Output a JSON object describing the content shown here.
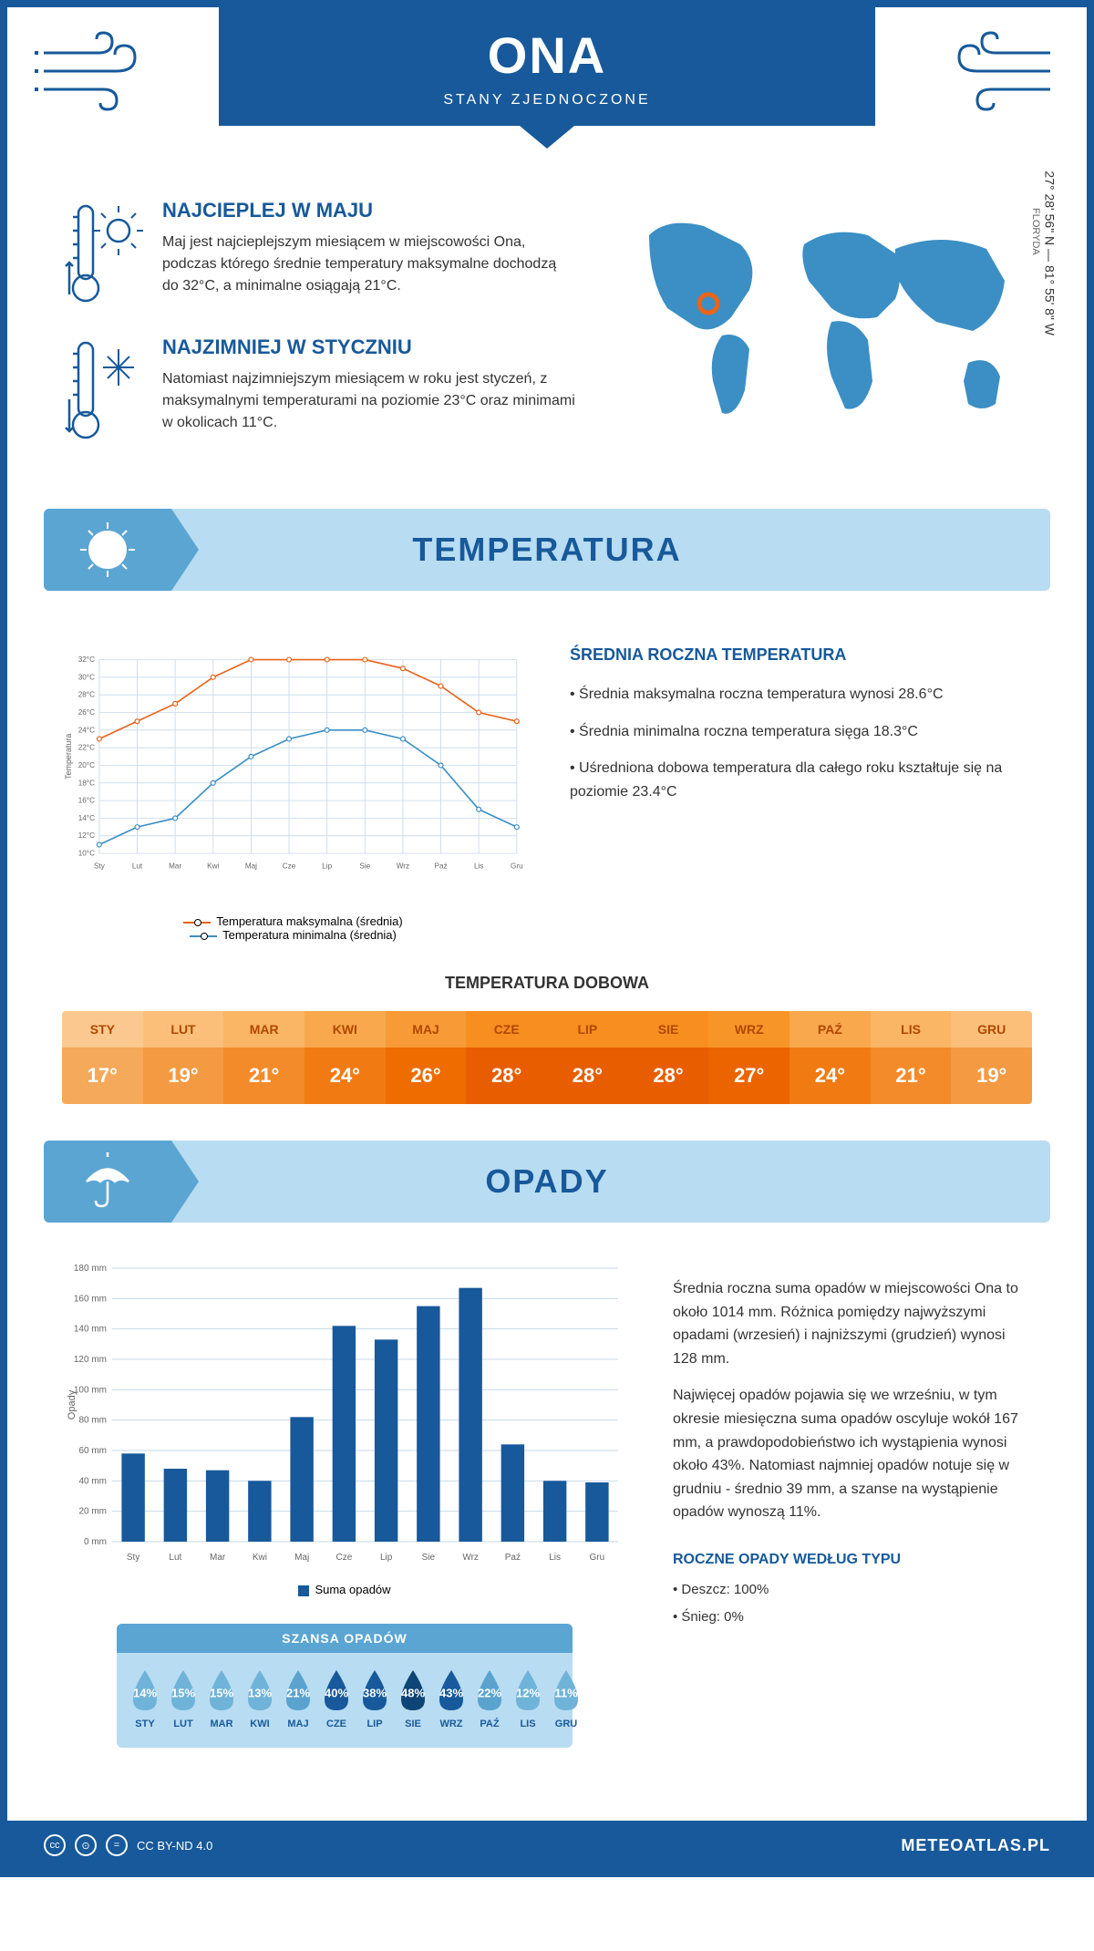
{
  "header": {
    "title": "ONA",
    "subtitle": "STANY ZJEDNOCZONE"
  },
  "intro": {
    "hottest": {
      "title": "NAJCIEPLEJ W MAJU",
      "text": "Maj jest najcieplejszym miesiącem w miejscowości Ona, podczas którego średnie temperatury maksymalne dochodzą do 32°C, a minimalne osiągają 21°C."
    },
    "coldest": {
      "title": "NAJZIMNIEJ W STYCZNIU",
      "text": "Natomiast najzimniejszym miesiącem w roku jest styczeń, z maksymalnymi temperaturami na poziomie 23°C oraz minimami w okolicach 11°C."
    },
    "coords": "27° 28' 56\" N — 81° 55' 8\" W",
    "region": "FLORYDA"
  },
  "temp_section": {
    "title": "TEMPERATURA",
    "chart": {
      "type": "line",
      "months": [
        "Sty",
        "Lut",
        "Mar",
        "Kwi",
        "Maj",
        "Cze",
        "Lip",
        "Sie",
        "Wrz",
        "Paź",
        "Lis",
        "Gru"
      ],
      "max_series": [
        23,
        25,
        27,
        30,
        32,
        32,
        32,
        32,
        31,
        29,
        26,
        25
      ],
      "min_series": [
        11,
        13,
        14,
        18,
        21,
        23,
        24,
        24,
        23,
        20,
        15,
        13
      ],
      "max_color": "#e8641b",
      "min_color": "#3b8fc4",
      "ylim": [
        10,
        32
      ],
      "ytick_step": 2,
      "y_axis_label": "Temperatura",
      "grid_color": "#c8d8e8",
      "background_color": "#ffffff",
      "legend_max": "Temperatura maksymalna (średnia)",
      "legend_min": "Temperatura minimalna (średnia)"
    },
    "side": {
      "title": "ŚREDNIA ROCZNA TEMPERATURA",
      "bullets": [
        "• Średnia maksymalna roczna temperatura wynosi 28.6°C",
        "• Średnia minimalna roczna temperatura sięga 18.3°C",
        "• Uśredniona dobowa temperatura dla całego roku kształtuje się na poziomie 23.4°C"
      ]
    },
    "daily": {
      "title": "TEMPERATURA DOBOWA",
      "months": [
        "STY",
        "LUT",
        "MAR",
        "KWI",
        "MAJ",
        "CZE",
        "LIP",
        "SIE",
        "WRZ",
        "PAŹ",
        "LIS",
        "GRU"
      ],
      "values": [
        "17°",
        "19°",
        "21°",
        "24°",
        "26°",
        "28°",
        "28°",
        "28°",
        "27°",
        "24°",
        "21°",
        "19°"
      ],
      "head_colors": [
        "#fbc98f",
        "#fbbf7a",
        "#fab565",
        "#f9a84d",
        "#f89b36",
        "#f78e1f",
        "#f78e1f",
        "#f78e1f",
        "#f89528",
        "#f9a84d",
        "#fab565",
        "#fbbf7a"
      ],
      "val_colors": [
        "#f5a95a",
        "#f49a42",
        "#f38b2a",
        "#f17b12",
        "#ee6c00",
        "#e85d00",
        "#e85d00",
        "#e85d00",
        "#eb6400",
        "#f17b12",
        "#f38b2a",
        "#f49a42"
      ]
    }
  },
  "precip_section": {
    "title": "OPADY",
    "chart": {
      "type": "bar",
      "months": [
        "Sty",
        "Lut",
        "Mar",
        "Kwi",
        "Maj",
        "Cze",
        "Lip",
        "Sie",
        "Wrz",
        "Paź",
        "Lis",
        "Gru"
      ],
      "values": [
        58,
        48,
        47,
        40,
        82,
        142,
        133,
        155,
        167,
        64,
        40,
        39
      ],
      "bar_color": "#17599a",
      "ylim": [
        0,
        180
      ],
      "ytick_step": 20,
      "y_axis_label": "Opady",
      "grid_color": "#c8d8e8",
      "legend": "Suma opadów"
    },
    "side": {
      "para1": "Średnia roczna suma opadów w miejscowości Ona to około 1014 mm. Różnica pomiędzy najwyższymi opadami (wrzesień) i najniższymi (grudzień) wynosi 128 mm.",
      "para2": "Najwięcej opadów pojawia się we wrześniu, w tym okresie miesięczna suma opadów oscyluje wokół 167 mm, a prawdopodobieństwo ich wystąpienia wynosi około 43%. Natomiast najmniej opadów notuje się w grudniu - średnio 39 mm, a szanse na wystąpienie opadów wynoszą 11%."
    },
    "rain_chance": {
      "title": "SZANSA OPADÓW",
      "months": [
        "STY",
        "LUT",
        "MAR",
        "KWI",
        "MAJ",
        "CZE",
        "LIP",
        "SIE",
        "WRZ",
        "PAŹ",
        "LIS",
        "GRU"
      ],
      "values": [
        "14%",
        "15%",
        "15%",
        "13%",
        "21%",
        "40%",
        "38%",
        "48%",
        "43%",
        "22%",
        "12%",
        "11%"
      ],
      "colors": [
        "#6fb3d9",
        "#6fb3d9",
        "#6fb3d9",
        "#6fb3d9",
        "#5aa3cf",
        "#17599a",
        "#17599a",
        "#0d4577",
        "#17599a",
        "#5aa3cf",
        "#6fb3d9",
        "#6fb3d9"
      ]
    },
    "types": {
      "title": "ROCZNE OPADY WEDŁUG TYPU",
      "items": [
        "• Deszcz: 100%",
        "• Śnieg: 0%"
      ]
    }
  },
  "footer": {
    "license": "CC BY-ND 4.0",
    "site": "METEOATLAS.PL"
  },
  "colors": {
    "primary": "#17599a",
    "light_blue": "#b8dcf2",
    "mid_blue": "#5ba5d3"
  }
}
